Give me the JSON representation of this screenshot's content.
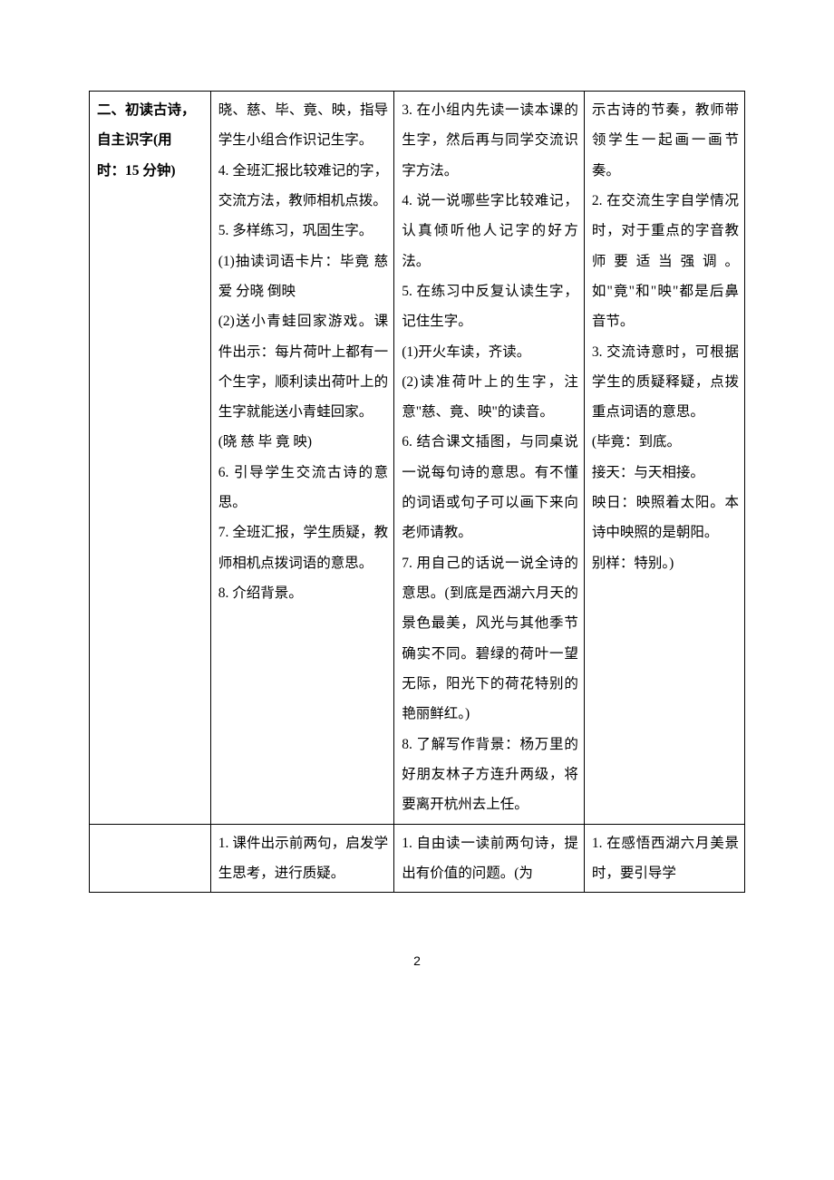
{
  "table": {
    "row1": {
      "c1_line1": "二、初读古诗，",
      "c1_line2": "自主识字(用",
      "c1_line3": "时：15 分钟)",
      "c2": "晓、慈、毕、竟、映，指导学生小组合作识记生字。\n4. 全班汇报比较难记的字，交流方法，教师相机点拨。\n5. 多样练习，巩固生字。\n(1)抽读词语卡片：毕竟  慈爱  分晓  倒映\n(2)送小青蛙回家游戏。课件出示：每片荷叶上都有一个生字，顺利读出荷叶上的生字就能送小青蛙回家。\n(晓  慈  毕  竟  映)\n6. 引导学生交流古诗的意思。\n7. 全班汇报，学生质疑，教师相机点拨词语的意思。\n8. 介绍背景。",
      "c3": "3. 在小组内先读一读本课的生字，然后再与同学交流识字方法。\n4. 说一说哪些字比较难记，认真倾听他人记字的好方法。\n5. 在练习中反复认读生字，记住生字。\n(1)开火车读，齐读。\n(2)读准荷叶上的生字，注意\"慈、竟、映\"的读音。\n6. 结合课文插图，与同桌说一说每句诗的意思。有不懂的词语或句子可以画下来向老师请教。\n7. 用自己的话说一说全诗的意思。(到底是西湖六月天的景色最美，风光与其他季节确实不同。碧绿的荷叶一望无际，阳光下的荷花特别的艳丽鲜红。)\n8. 了解写作背景：杨万里的好朋友林子方连升两级，将要离开杭州去上任。",
      "c4": "示古诗的节奏，教师带领学生一起画一画节奏。\n2. 在交流生字自学情况时，对于重点的字音教师要适当强调。如\"竟\"和\"映\"都是后鼻音节。\n3. 交流诗意时，可根据学生的质疑释疑，点拨重点词语的意思。\n(毕竟：到底。\n接天：与天相接。\n映日：映照着太阳。本诗中映照的是朝阳。\n别样：特别。)"
    },
    "row2": {
      "c1": "",
      "c2": "1. 课件出示前两句，启发学生思考，进行质疑。",
      "c3": "1. 自由读一读前两句诗，提出有价值的问题。(为",
      "c4": "1. 在感悟西湖六月美景时，要引导学"
    }
  },
  "page_number": "2"
}
